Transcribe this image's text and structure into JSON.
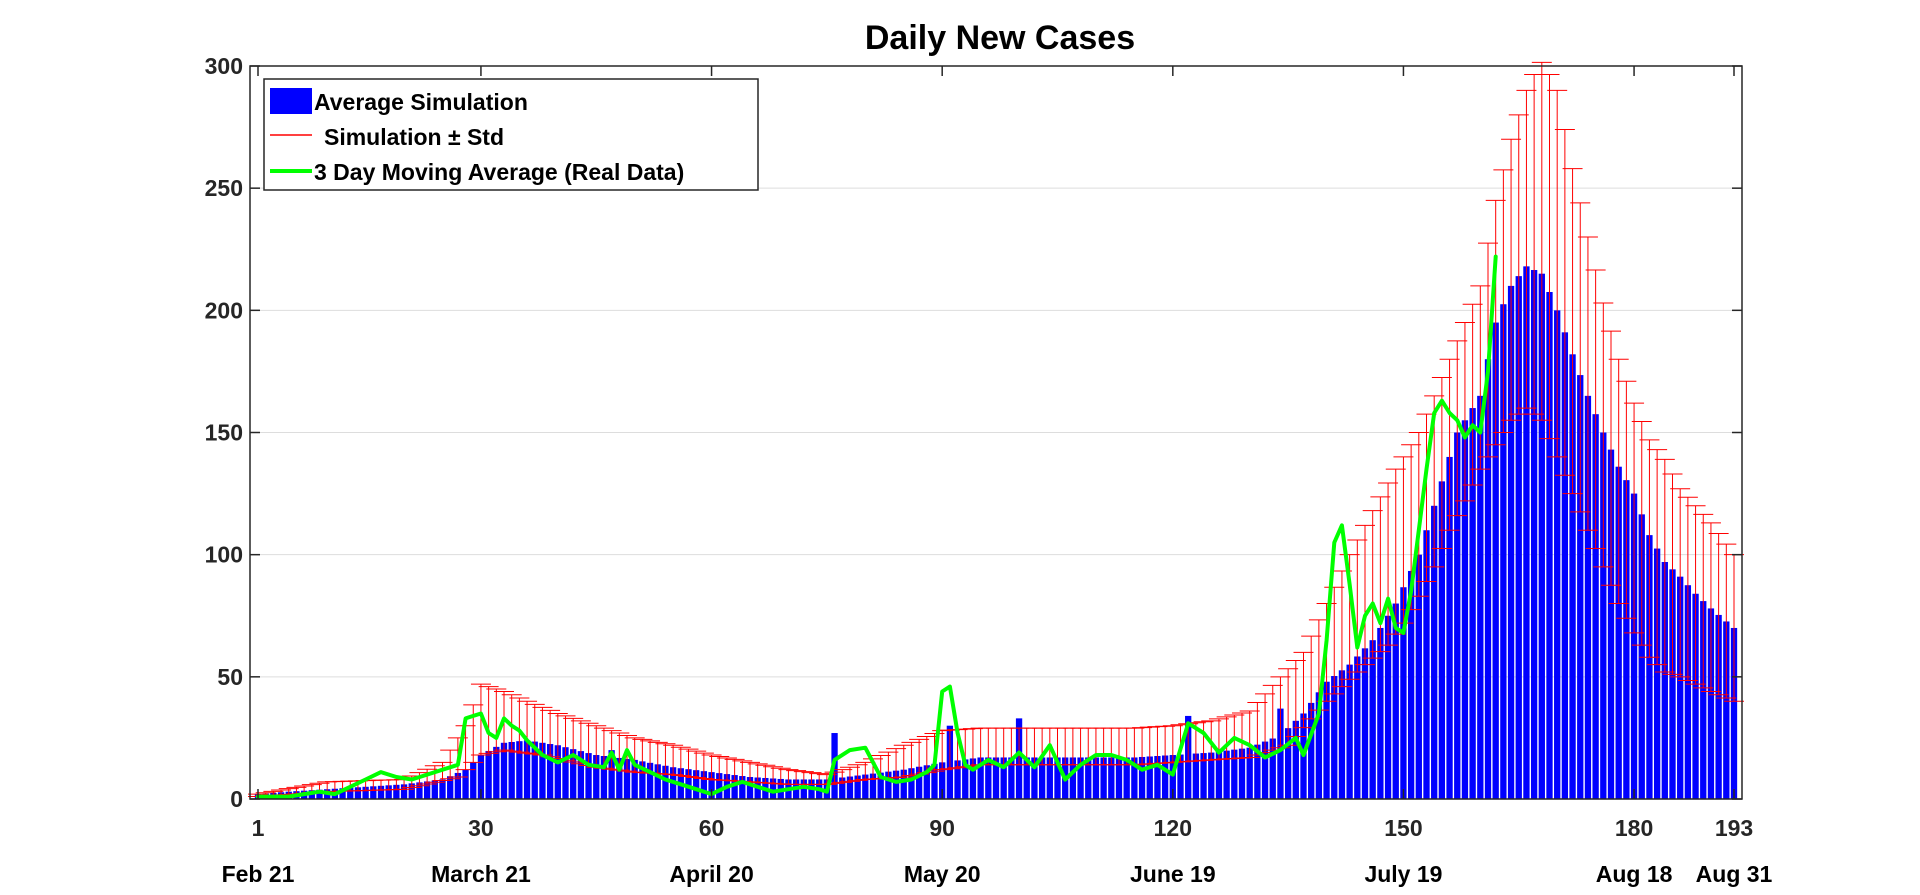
{
  "chart_data": {
    "type": "bar",
    "title": "Daily New Cases",
    "xlabel": "",
    "ylabel": "",
    "xlim": [
      1,
      193
    ],
    "ylim": [
      0,
      300
    ],
    "grid": "horizontal",
    "legend_position": "top-left",
    "x_ticks": [
      {
        "value": 1,
        "label": "1"
      },
      {
        "value": 30,
        "label": "30"
      },
      {
        "value": 60,
        "label": "60"
      },
      {
        "value": 90,
        "label": "90"
      },
      {
        "value": 120,
        "label": "120"
      },
      {
        "value": 150,
        "label": "150"
      },
      {
        "value": 180,
        "label": "180"
      },
      {
        "value": 193,
        "label": "193"
      }
    ],
    "y_ticks": [
      {
        "value": 0,
        "label": "0"
      },
      {
        "value": 50,
        "label": "50"
      },
      {
        "value": 100,
        "label": "100"
      },
      {
        "value": 150,
        "label": "150"
      },
      {
        "value": 200,
        "label": "200"
      },
      {
        "value": 250,
        "label": "250"
      },
      {
        "value": 300,
        "label": "300"
      }
    ],
    "date_labels": [
      {
        "value": 1,
        "label": "Feb 21"
      },
      {
        "value": 30,
        "label": "March 21"
      },
      {
        "value": 60,
        "label": "April 20"
      },
      {
        "value": 90,
        "label": "May 20"
      },
      {
        "value": 120,
        "label": "June 19"
      },
      {
        "value": 150,
        "label": "July 19"
      },
      {
        "value": 180,
        "label": "Aug 18"
      },
      {
        "value": 193,
        "label": "Aug 31"
      }
    ],
    "series": [
      {
        "name": "Average Simulation",
        "kind": "bar",
        "color": "#0000ff",
        "std_anchors": [
          [
            1,
            1
          ],
          [
            10,
            3
          ],
          [
            20,
            4
          ],
          [
            27,
            9
          ],
          [
            30,
            18
          ],
          [
            33,
            20
          ],
          [
            38,
            18
          ],
          [
            45,
            13
          ],
          [
            50,
            11
          ],
          [
            55,
            10
          ],
          [
            60,
            8
          ],
          [
            65,
            7
          ],
          [
            70,
            6
          ],
          [
            75,
            6
          ],
          [
            80,
            8
          ],
          [
            85,
            9
          ],
          [
            90,
            12
          ],
          [
            95,
            14
          ],
          [
            100,
            14
          ],
          [
            105,
            14
          ],
          [
            110,
            14
          ],
          [
            115,
            14
          ],
          [
            120,
            15
          ],
          [
            125,
            16
          ],
          [
            130,
            17
          ],
          [
            135,
            22
          ],
          [
            140,
            40
          ],
          [
            145,
            55
          ],
          [
            148,
            63
          ],
          [
            150,
            72
          ],
          [
            152,
            83
          ],
          [
            154,
            95
          ],
          [
            156,
            110
          ],
          [
            158,
            122
          ],
          [
            160,
            135
          ],
          [
            162,
            145
          ],
          [
            164,
            155
          ],
          [
            166,
            160
          ],
          [
            168,
            155
          ],
          [
            170,
            140
          ],
          [
            172,
            125
          ],
          [
            174,
            110
          ],
          [
            176,
            95
          ],
          [
            178,
            80
          ],
          [
            180,
            68
          ],
          [
            182,
            58
          ],
          [
            184,
            52
          ],
          [
            186,
            50
          ],
          [
            188,
            47
          ],
          [
            190,
            44
          ],
          [
            193,
            40
          ]
        ],
        "anchors": [
          [
            1,
            2
          ],
          [
            5,
            3
          ],
          [
            10,
            4
          ],
          [
            15,
            5
          ],
          [
            20,
            6
          ],
          [
            25,
            8
          ],
          [
            28,
            12
          ],
          [
            30,
            18
          ],
          [
            33,
            23
          ],
          [
            36,
            24
          ],
          [
            40,
            22
          ],
          [
            45,
            18
          ],
          [
            50,
            16
          ],
          [
            55,
            13
          ],
          [
            60,
            11
          ],
          [
            65,
            9
          ],
          [
            70,
            8
          ],
          [
            75,
            8
          ],
          [
            80,
            10
          ],
          [
            85,
            12
          ],
          [
            90,
            15
          ],
          [
            95,
            17
          ],
          [
            100,
            17
          ],
          [
            105,
            17
          ],
          [
            110,
            17
          ],
          [
            115,
            17
          ],
          [
            120,
            18
          ],
          [
            125,
            19
          ],
          [
            130,
            21
          ],
          [
            134,
            26
          ],
          [
            137,
            35
          ],
          [
            140,
            48
          ],
          [
            143,
            55
          ],
          [
            146,
            65
          ],
          [
            149,
            80
          ],
          [
            152,
            100
          ],
          [
            155,
            130
          ],
          [
            157,
            150
          ],
          [
            160,
            165
          ],
          [
            162,
            195
          ],
          [
            164,
            210
          ],
          [
            166,
            218
          ],
          [
            168,
            215
          ],
          [
            170,
            200
          ],
          [
            172,
            182
          ],
          [
            174,
            165
          ],
          [
            176,
            150
          ],
          [
            178,
            136
          ],
          [
            180,
            125
          ],
          [
            182,
            108
          ],
          [
            184,
            97
          ],
          [
            186,
            91
          ],
          [
            188,
            84
          ],
          [
            190,
            78
          ],
          [
            193,
            70
          ]
        ],
        "spikes": [
          [
            28,
            12
          ],
          [
            47,
            20
          ],
          [
            76,
            27
          ],
          [
            91,
            30
          ],
          [
            100,
            33
          ],
          [
            122,
            34
          ],
          [
            134,
            37
          ]
        ]
      },
      {
        "name": "Simulation ± Std",
        "kind": "errorbar",
        "color": "#ff0000",
        "plus_anchors": [
          [
            1,
            2
          ],
          [
            10,
            7
          ],
          [
            20,
            8
          ],
          [
            25,
            15
          ],
          [
            28,
            30
          ],
          [
            30,
            47
          ],
          [
            33,
            44
          ],
          [
            36,
            40
          ],
          [
            40,
            35
          ],
          [
            45,
            30
          ],
          [
            50,
            25
          ],
          [
            55,
            22
          ],
          [
            60,
            18
          ],
          [
            65,
            15
          ],
          [
            70,
            12
          ],
          [
            75,
            10
          ],
          [
            80,
            15
          ],
          [
            85,
            22
          ],
          [
            90,
            28
          ],
          [
            95,
            29
          ],
          [
            100,
            29
          ],
          [
            105,
            29
          ],
          [
            110,
            29
          ],
          [
            115,
            29
          ],
          [
            120,
            30
          ],
          [
            125,
            32
          ],
          [
            130,
            36
          ],
          [
            134,
            50
          ],
          [
            137,
            60
          ],
          [
            140,
            80
          ],
          [
            143,
            100
          ],
          [
            146,
            118
          ],
          [
            149,
            135
          ],
          [
            152,
            150
          ],
          [
            154,
            165
          ],
          [
            156,
            180
          ],
          [
            158,
            195
          ],
          [
            160,
            210
          ],
          [
            162,
            245
          ],
          [
            164,
            270
          ],
          [
            166,
            290
          ],
          [
            168,
            303
          ],
          [
            170,
            290
          ],
          [
            172,
            258
          ],
          [
            174,
            230
          ],
          [
            176,
            203
          ],
          [
            178,
            180
          ],
          [
            180,
            162
          ],
          [
            182,
            147
          ],
          [
            184,
            139
          ],
          [
            186,
            127
          ],
          [
            188,
            120
          ],
          [
            190,
            113
          ],
          [
            193,
            100
          ]
        ]
      },
      {
        "name": "3 Day Moving Average (Real Data)",
        "kind": "line",
        "color": "#00ff00",
        "x": [
          1,
          3,
          5,
          7,
          9,
          11,
          13,
          15,
          17,
          19,
          21,
          23,
          25,
          27,
          28,
          29,
          30,
          31,
          32,
          33,
          34,
          35,
          36,
          38,
          40,
          42,
          44,
          46,
          47,
          48,
          49,
          50,
          52,
          54,
          56,
          58,
          60,
          62,
          64,
          66,
          68,
          70,
          72,
          74,
          75,
          76,
          78,
          80,
          82,
          84,
          86,
          88,
          89,
          90,
          91,
          92,
          93,
          94,
          96,
          98,
          100,
          102,
          104,
          106,
          108,
          110,
          112,
          114,
          116,
          118,
          120,
          122,
          124,
          126,
          128,
          130,
          132,
          134,
          136,
          137,
          139,
          140,
          141,
          142,
          143,
          144,
          145,
          146,
          147,
          148,
          149,
          150,
          151,
          152,
          153,
          154,
          155,
          156,
          157,
          158,
          159,
          160,
          161,
          162
        ],
        "y": [
          1,
          1,
          1,
          2,
          3,
          2,
          5,
          8,
          11,
          9,
          8,
          10,
          12,
          14,
          33,
          34,
          35,
          27,
          25,
          33,
          30,
          28,
          24,
          18,
          15,
          18,
          14,
          13,
          19,
          12,
          20,
          14,
          11,
          8,
          6,
          4,
          2,
          5,
          7,
          5,
          3,
          4,
          5,
          4,
          3,
          16,
          20,
          21,
          9,
          7,
          8,
          11,
          14,
          44,
          46,
          27,
          14,
          12,
          16,
          13,
          19,
          13,
          22,
          8,
          14,
          18,
          18,
          16,
          12,
          14,
          10,
          31,
          27,
          19,
          25,
          22,
          17,
          20,
          25,
          18,
          35,
          65,
          105,
          112,
          88,
          62,
          75,
          80,
          72,
          82,
          70,
          68,
          85,
          110,
          135,
          158,
          163,
          158,
          155,
          148,
          153,
          150,
          175,
          222
        ]
      }
    ]
  }
}
